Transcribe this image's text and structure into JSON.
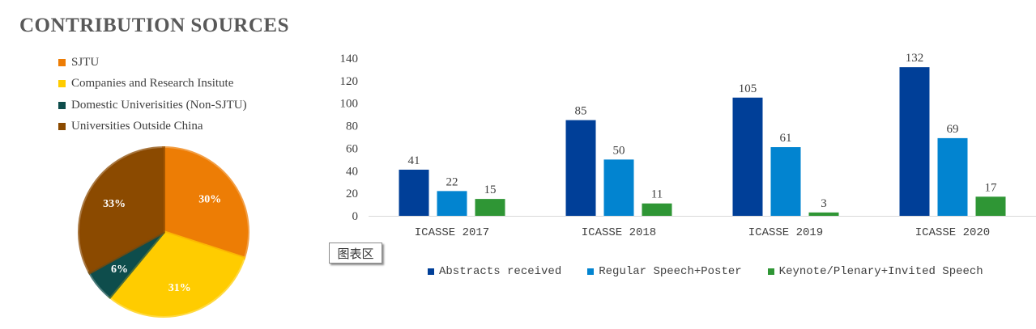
{
  "title": "CONTRIBUTION SOURCES",
  "chart_area_label": "图表区",
  "chart_data": [
    {
      "type": "pie",
      "title": "",
      "legend_placement": "top",
      "slices": [
        {
          "name": "SJTU",
          "value": 30,
          "label": "30%",
          "color": "#ED7D05"
        },
        {
          "name": "Companies and Research Insitute",
          "value": 31,
          "label": "31%",
          "color": "#FFCC00"
        },
        {
          "name": "Domestic Univerisities (Non-SJTU)",
          "value": 6,
          "label": "6%",
          "color": "#0E4D4C"
        },
        {
          "name": "Universities Outside China",
          "value": 33,
          "label": "33%",
          "color": "#8B4A00"
        }
      ]
    },
    {
      "type": "bar",
      "title": "",
      "xlabel": "",
      "ylabel": "",
      "ylim": [
        0,
        140
      ],
      "yticks": [
        0,
        20,
        40,
        60,
        80,
        100,
        120,
        140
      ],
      "grid": false,
      "legend_placement": "bottom",
      "categories": [
        "ICASSE 2017",
        "ICASSE 2018",
        "ICASSE 2019",
        "ICASSE 2020"
      ],
      "series": [
        {
          "name": "Abstracts received",
          "color": "#003F98",
          "values": [
            41,
            85,
            105,
            132
          ]
        },
        {
          "name": "Regular Speech+Poster",
          "color": "#0284D0",
          "values": [
            22,
            50,
            61,
            69
          ]
        },
        {
          "name": "Keynote/Plenary+Invited Speech",
          "color": "#2F9635",
          "values": [
            15,
            11,
            3,
            17
          ]
        }
      ]
    }
  ]
}
